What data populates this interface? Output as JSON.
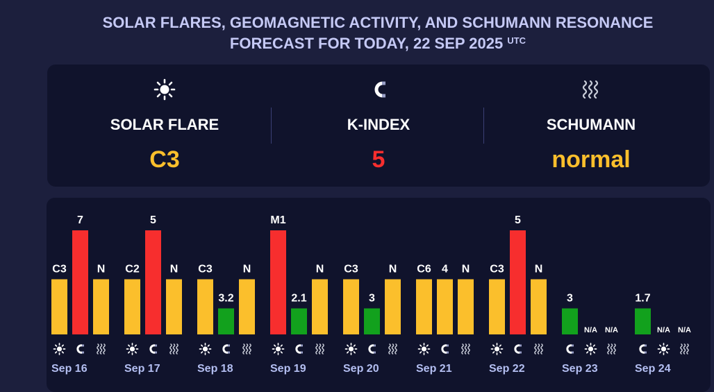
{
  "header": {
    "title_line1": "SOLAR FLARES, GEOMAGNETIC ACTIVITY, AND SCHUMANN RESONANCE",
    "title_line2": "FORECAST FOR TODAY, 22 SEP 2025",
    "title_sup": "UTC"
  },
  "summary": {
    "solar": {
      "label": "SOLAR FLARE",
      "value": "C3",
      "icon": "sun-icon",
      "color": "#fbbf2c"
    },
    "kindex": {
      "label": "K-INDEX",
      "value": "5",
      "icon": "magnet-icon",
      "color": "#f72e2e"
    },
    "schumann": {
      "label": "SCHUMANN",
      "value": "normal",
      "icon": "waves-icon",
      "color": "#fbbf2c"
    }
  },
  "colors": {
    "yellow": "#fbbf2c",
    "red": "#f72e2e",
    "green": "#12a11d",
    "bg": "#1c1f3d",
    "panel": "#10132c"
  },
  "chart_data": {
    "type": "bar",
    "categories": [
      "Sep 16",
      "Sep 17",
      "Sep 18",
      "Sep 19",
      "Sep 20",
      "Sep 21",
      "Sep 22",
      "Sep 23",
      "Sep 24"
    ],
    "days": [
      {
        "date": "Sep 16",
        "bars": [
          {
            "kind": "solar",
            "label": "C3",
            "level": 0.53,
            "color": "#fbbf2c"
          },
          {
            "kind": "kindex",
            "label": "7",
            "level": 1.0,
            "color": "#f72e2e"
          },
          {
            "kind": "schumann",
            "label": "N",
            "level": 0.53,
            "color": "#fbbf2c"
          }
        ]
      },
      {
        "date": "Sep 17",
        "bars": [
          {
            "kind": "solar",
            "label": "C2",
            "level": 0.53,
            "color": "#fbbf2c"
          },
          {
            "kind": "kindex",
            "label": "5",
            "level": 1.0,
            "color": "#f72e2e"
          },
          {
            "kind": "schumann",
            "label": "N",
            "level": 0.53,
            "color": "#fbbf2c"
          }
        ]
      },
      {
        "date": "Sep 18",
        "bars": [
          {
            "kind": "solar",
            "label": "C3",
            "level": 0.53,
            "color": "#fbbf2c"
          },
          {
            "kind": "kindex",
            "label": "3.2",
            "level": 0.25,
            "color": "#12a11d"
          },
          {
            "kind": "schumann",
            "label": "N",
            "level": 0.53,
            "color": "#fbbf2c"
          }
        ]
      },
      {
        "date": "Sep 19",
        "bars": [
          {
            "kind": "solar",
            "label": "M1",
            "level": 1.0,
            "color": "#f72e2e"
          },
          {
            "kind": "kindex",
            "label": "2.1",
            "level": 0.25,
            "color": "#12a11d"
          },
          {
            "kind": "schumann",
            "label": "N",
            "level": 0.53,
            "color": "#fbbf2c"
          }
        ]
      },
      {
        "date": "Sep 20",
        "bars": [
          {
            "kind": "solar",
            "label": "C3",
            "level": 0.53,
            "color": "#fbbf2c"
          },
          {
            "kind": "kindex",
            "label": "3",
            "level": 0.25,
            "color": "#12a11d"
          },
          {
            "kind": "schumann",
            "label": "N",
            "level": 0.53,
            "color": "#fbbf2c"
          }
        ]
      },
      {
        "date": "Sep 21",
        "bars": [
          {
            "kind": "solar",
            "label": "C6",
            "level": 0.53,
            "color": "#fbbf2c"
          },
          {
            "kind": "kindex",
            "label": "4",
            "level": 0.53,
            "color": "#fbbf2c"
          },
          {
            "kind": "schumann",
            "label": "N",
            "level": 0.53,
            "color": "#fbbf2c"
          }
        ]
      },
      {
        "date": "Sep 22",
        "bars": [
          {
            "kind": "solar",
            "label": "C3",
            "level": 0.53,
            "color": "#fbbf2c"
          },
          {
            "kind": "kindex",
            "label": "5",
            "level": 1.0,
            "color": "#f72e2e"
          },
          {
            "kind": "schumann",
            "label": "N",
            "level": 0.53,
            "color": "#fbbf2c"
          }
        ]
      },
      {
        "date": "Sep 23",
        "bars": [
          {
            "kind": "kindex",
            "label": "3",
            "level": 0.25,
            "color": "#12a11d"
          },
          {
            "kind": "solar",
            "label": "N/A",
            "level": 0,
            "color": "#fbbf2c"
          },
          {
            "kind": "schumann",
            "label": "N/A",
            "level": 0,
            "color": "#fbbf2c"
          }
        ]
      },
      {
        "date": "Sep 24",
        "bars": [
          {
            "kind": "kindex",
            "label": "1.7",
            "level": 0.25,
            "color": "#12a11d"
          },
          {
            "kind": "solar",
            "label": "N/A",
            "level": 0,
            "color": "#fbbf2c"
          },
          {
            "kind": "schumann",
            "label": "N/A",
            "level": 0,
            "color": "#fbbf2c"
          }
        ]
      }
    ]
  }
}
